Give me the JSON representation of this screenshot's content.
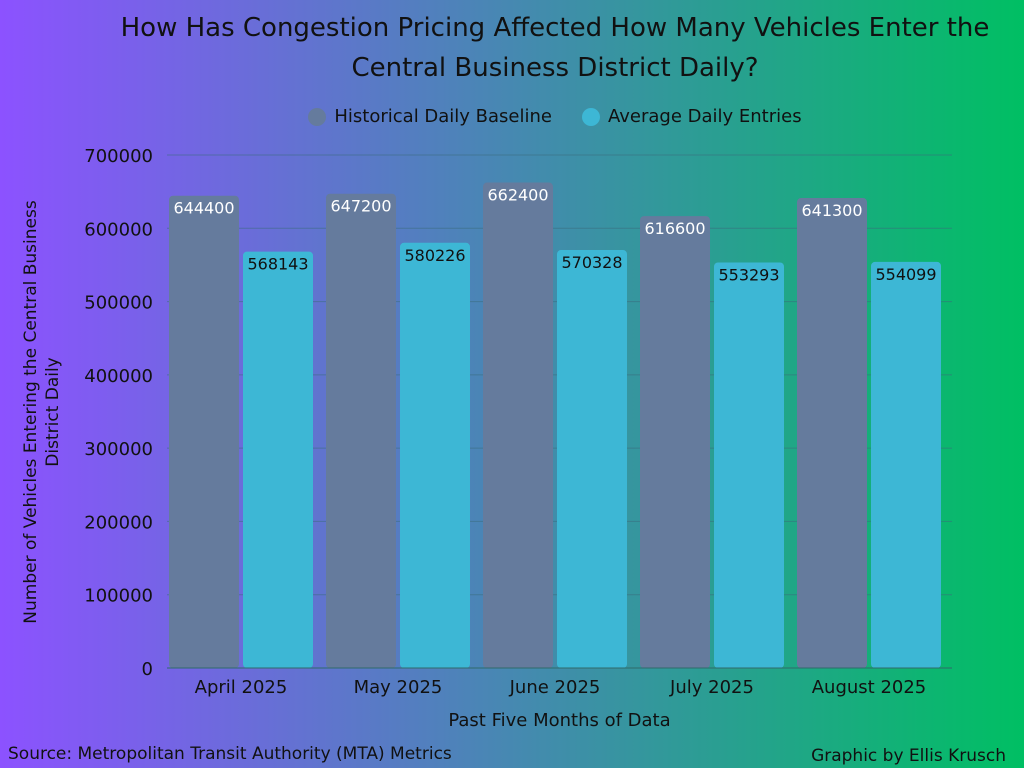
{
  "chart_data": {
    "type": "bar",
    "title": "How Has Congestion Pricing Affected How Many Vehicles Enter the Central Business District Daily?",
    "xlabel": "Past Five Months of Data",
    "ylabel": "Number of Vehicles Entering the Central Business District Daily",
    "categories": [
      "April 2025",
      "May 2025",
      "June 2025",
      "July 2025",
      "August 2025"
    ],
    "ylim": [
      0,
      700000
    ],
    "yticks": [
      0,
      100000,
      200000,
      300000,
      400000,
      500000,
      600000,
      700000
    ],
    "grid": true,
    "legend_position": "top-center",
    "series": [
      {
        "name": "Historical Daily Baseline",
        "color": "#657b9d",
        "label_color": "#ffffff",
        "values": [
          644400,
          647200,
          662400,
          616600,
          641300
        ]
      },
      {
        "name": "Average Daily Entries",
        "color": "#3db7d5",
        "label_color": "#111111",
        "values": [
          568143,
          580226,
          570328,
          553293,
          554099
        ]
      }
    ]
  },
  "footer": {
    "source": "Source: Metropolitan Transit Authority (MTA) Metrics",
    "credit": "Graphic by Ellis Krusch"
  }
}
